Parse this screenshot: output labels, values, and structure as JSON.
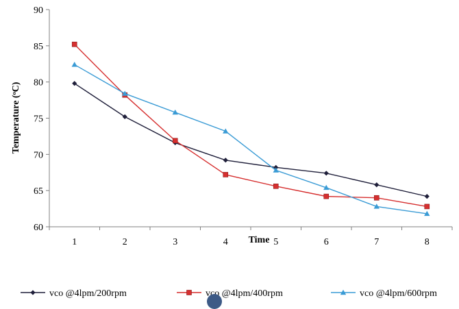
{
  "chart_data": {
    "type": "line",
    "title": "",
    "xlabel": "Time",
    "ylabel": "Temperature (ᵒC)",
    "ylim": [
      60,
      90
    ],
    "yticks": [
      60,
      65,
      70,
      75,
      80,
      85,
      90
    ],
    "categories": [
      "1",
      "2",
      "3",
      "4",
      "5",
      "6",
      "7",
      "8"
    ],
    "grid": false,
    "legend_position": "bottom",
    "series": [
      {
        "name": "vco @4lpm/200rpm",
        "color": "#1f1f3a",
        "marker": "diamond",
        "values": [
          79.8,
          75.2,
          71.6,
          69.2,
          68.2,
          67.4,
          65.8,
          64.2
        ]
      },
      {
        "name": "vco @4lpm/400rpm",
        "color": "#d62f2f",
        "marker": "square",
        "values": [
          85.2,
          78.2,
          71.9,
          67.2,
          65.6,
          64.2,
          64.0,
          62.8
        ]
      },
      {
        "name": "vco @4lpm/600rpm",
        "color": "#3a9bd5",
        "marker": "triangle",
        "values": [
          82.4,
          78.4,
          75.8,
          73.2,
          67.8,
          65.4,
          62.8,
          61.8
        ]
      }
    ]
  }
}
